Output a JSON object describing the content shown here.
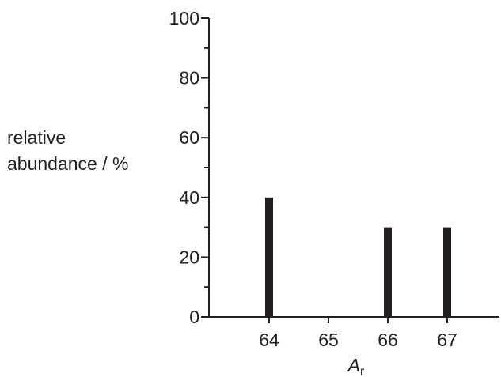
{
  "chart_data": {
    "type": "bar",
    "categories": [
      "64",
      "65",
      "66",
      "67"
    ],
    "values": [
      40,
      0,
      30,
      30
    ],
    "ylim": [
      0,
      100
    ],
    "yticks_major": [
      0,
      20,
      40,
      60,
      80,
      100
    ],
    "yticks_minor": [
      10,
      30,
      50,
      70,
      90
    ],
    "ylabel_line1": "relative",
    "ylabel_line2": "abundance / %",
    "xlabel_main": "A",
    "xlabel_sub": "r",
    "grid": false,
    "bar_color": "#231f20",
    "axis_color": "#231f20"
  }
}
